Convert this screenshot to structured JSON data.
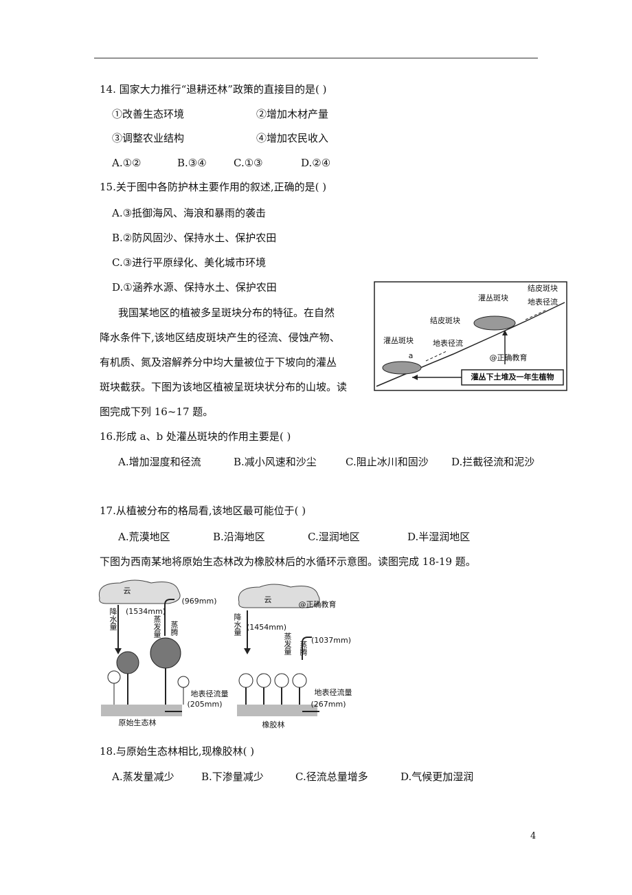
{
  "q14": {
    "stem": "14. 国家大力推行“退耕还林”政策的直接目的是(     )",
    "items": [
      "①改善生态环境",
      "②增加木材产量",
      "③调整农业结构",
      "④增加农民收入"
    ],
    "options": [
      "A.①②",
      "B.③④",
      "C.①③",
      "D.②④"
    ]
  },
  "q15": {
    "stem": "15.关于图中各防护林主要作用的叙述,正确的是(     )",
    "options": [
      "A.③抵御海风、海浪和暴雨的袭击",
      "B.②防风固沙、保持水土、保护农田",
      "C.③进行平原绿化、美化城市环境",
      "D.①涵养水源、保持水土、保护农田"
    ]
  },
  "passage": {
    "lines": [
      "我国某地区的植被多呈斑块分布的特征。在自然",
      "降水条件下,该地区结皮斑块产生的径流、侵蚀产物、",
      "有机质、氮及溶解养分中均大量被位于下坡向的灌丛",
      "斑块截获。下图为该地区植被呈斑块状分布的山坡。读",
      "图完成下列 16~17 题。"
    ]
  },
  "figure1": {
    "labels": [
      "结皮斑块",
      "地表径流",
      "灌丛斑块",
      "结皮斑块",
      "地表径流",
      "灌丛斑块",
      "a",
      "@正确教育",
      "灌丛下土堆及一年生植物"
    ]
  },
  "q16": {
    "stem": "16.形成 a、b 处灌丛斑块的作用主要是(     )",
    "options": [
      "A.增加湿度和径流",
      "B.减小风速和沙尘",
      "C.阻止冰川和固沙",
      "D.拦截径流和泥沙"
    ]
  },
  "q17": {
    "stem": "17.从植被分布的格局看,该地区最可能位于(     )",
    "options": [
      "A.荒漠地区",
      "B.沿海地区",
      "C.湿润地区",
      "D.半湿润地区"
    ]
  },
  "intro": "下图为西南某地将原始生态林改为橡胶林后的水循环示意图。读图完成 18-19 题。",
  "figure2": {
    "left": {
      "cloud": "云",
      "precip": "降水量",
      "precip_value": "(1534mm)",
      "evap": "蒸发量",
      "transp": "蒸腾",
      "evap_value": "(969mm)",
      "runoff": "地表径流量",
      "runoff_value": "(205mm)",
      "caption": "原始生态林"
    },
    "right": {
      "cloud": "云",
      "watermark": "@正确教育",
      "precip": "降水量",
      "precip_value": "(1454mm)",
      "evap": "蒸发量",
      "transp": "蒸腾",
      "evap_value": "(1037mm)",
      "runoff": "地表径流量",
      "runoff_value": "(267mm)",
      "caption": "橡胶林"
    }
  },
  "q18": {
    "stem": "18.与原始生态林相比,现橡胶林(     )",
    "options": [
      "A.蒸发量减少",
      "B.下渗量减少",
      "C.径流总量增多",
      "D.气候更加湿润"
    ]
  },
  "page_number": "4"
}
